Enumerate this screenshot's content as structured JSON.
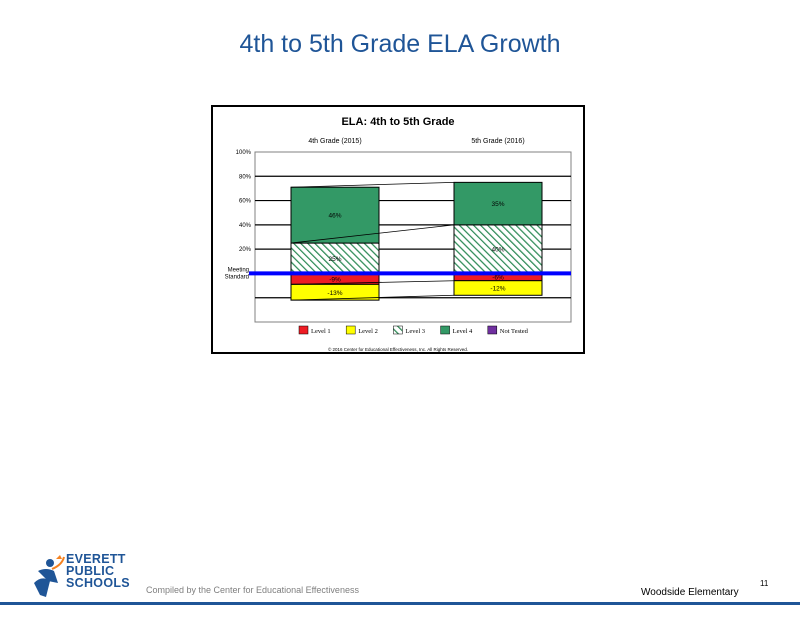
{
  "slide": {
    "title": "4th to 5th Grade ELA Growth",
    "compiled_by": "Compiled by the Center for Educational Effectiveness",
    "school": "Woodside Elementary",
    "page_number": "11",
    "logo": {
      "line1": "EVERETT",
      "line2": "PUBLIC",
      "line3": "SCHOOLS"
    }
  },
  "chart_data": {
    "type": "bar",
    "title": "ELA: 4th to 5th Grade",
    "categories": [
      "4th Grade (2015)",
      "5th Grade (2016)"
    ],
    "y_ticks": [
      "100%",
      "80%",
      "60%",
      "40%",
      "20%"
    ],
    "ylim": [
      -40,
      100
    ],
    "meeting_standard_label": [
      "Meeting",
      "Standard"
    ],
    "series": [
      {
        "name": "Level 1",
        "color": "#ee1c24",
        "values": [
          -9,
          -6
        ],
        "labels": [
          "-9%",
          "-6%"
        ]
      },
      {
        "name": "Level 2",
        "color": "#ffff00",
        "values": [
          -13,
          -12
        ],
        "labels": [
          "-13%",
          "-12%"
        ]
      },
      {
        "name": "Level 3",
        "color": "#2e8b57",
        "pattern": "hatch",
        "values": [
          25,
          40
        ],
        "labels": [
          "25%",
          "40%"
        ]
      },
      {
        "name": "Level 4",
        "color": "#339966",
        "values": [
          46,
          35
        ],
        "labels": [
          "46%",
          "35%"
        ]
      },
      {
        "name": "Not Tested",
        "color": "#7030a0",
        "values": [
          0,
          0
        ],
        "labels": [
          "",
          ""
        ]
      }
    ],
    "legend_position": "bottom",
    "copyright": "© 2016 Center for Educational Effectiveness, Inc. All Rights Reserved."
  }
}
